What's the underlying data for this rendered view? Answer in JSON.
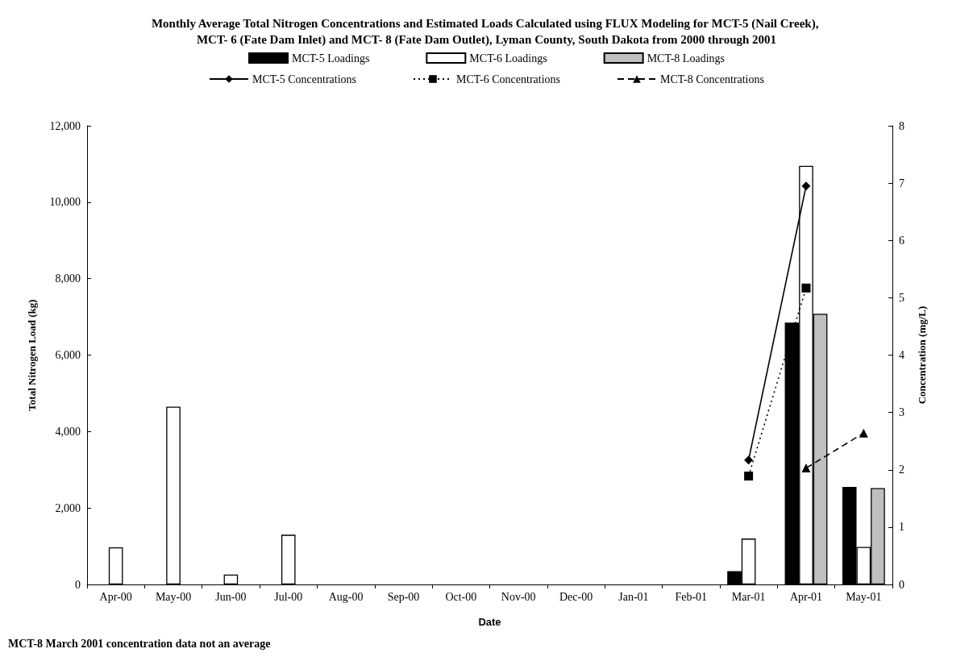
{
  "chart_data": {
    "type": "bar",
    "title": "Monthly Average Total Nitrogen Concentrations and Estimated Loads Calculated using FLUX Modeling for MCT-5 (Nail Creek), MCT- 6 (Fate Dam Inlet) and MCT- 8 (Fate Dam Outlet), Lyman County, South Dakota from 2000 through 2001",
    "xlabel": "Date",
    "ylabel": "Total Nitrogen Load (kg)",
    "y2label": "Concentration (mg/L)",
    "categories": [
      "Apr-00",
      "May-00",
      "Jun-00",
      "Jul-00",
      "Aug-00",
      "Sep-00",
      "Oct-00",
      "Nov-00",
      "Dec-00",
      "Jan-01",
      "Feb-01",
      "Mar-01",
      "Apr-01",
      "May-01"
    ],
    "series": [
      {
        "name": "MCT-5 Loadings",
        "color": "#000000",
        "values": [
          null,
          null,
          null,
          null,
          null,
          null,
          null,
          null,
          null,
          null,
          null,
          350,
          6850,
          2550
        ]
      },
      {
        "name": "MCT-6 Loadings",
        "color": "#ffffff",
        "values": [
          970,
          4650,
          260,
          1300,
          null,
          null,
          null,
          null,
          null,
          null,
          null,
          1200,
          10950,
          980
        ]
      },
      {
        "name": "MCT-8 Loadings",
        "color": "#bfbfbf",
        "values": [
          null,
          null,
          null,
          null,
          null,
          null,
          null,
          null,
          null,
          null,
          null,
          null,
          7080,
          2520
        ]
      },
      {
        "name": "MCT-5 Concentrations",
        "type": "line",
        "axis": "y2",
        "color": "#000000",
        "marker": "diamond",
        "line_style": "solid",
        "values": [
          null,
          null,
          null,
          null,
          null,
          null,
          null,
          null,
          null,
          null,
          null,
          2.17,
          6.95,
          null
        ]
      },
      {
        "name": "MCT-6 Concentrations",
        "type": "line",
        "axis": "y2",
        "color": "#000000",
        "marker": "square",
        "line_style": "dotted",
        "values": [
          null,
          null,
          null,
          null,
          null,
          null,
          null,
          null,
          null,
          null,
          null,
          1.89,
          5.17,
          null
        ]
      },
      {
        "name": "MCT-8 Concentrations",
        "type": "line",
        "axis": "y2",
        "color": "#000000",
        "marker": "triangle",
        "line_style": "dashed",
        "values": [
          null,
          null,
          null,
          null,
          null,
          null,
          null,
          null,
          null,
          null,
          null,
          null,
          2.03,
          2.64
        ]
      }
    ],
    "ylim": [
      0,
      12000
    ],
    "yticks": [
      {
        "value": 0,
        "label": "0"
      },
      {
        "value": 2000,
        "label": "2,000"
      },
      {
        "value": 4000,
        "label": "4,000"
      },
      {
        "value": 6000,
        "label": "6,000"
      },
      {
        "value": 8000,
        "label": "8,000"
      },
      {
        "value": 10000,
        "label": "10,000"
      },
      {
        "value": 12000,
        "label": "12,000"
      }
    ],
    "y2lim": [
      0,
      8
    ],
    "y2ticks": [
      0,
      1,
      2,
      3,
      4,
      5,
      6,
      7,
      8
    ],
    "grid": false,
    "legend": "top",
    "annotations": [
      "MCT-8 March 2001 concentration data not an average"
    ]
  }
}
